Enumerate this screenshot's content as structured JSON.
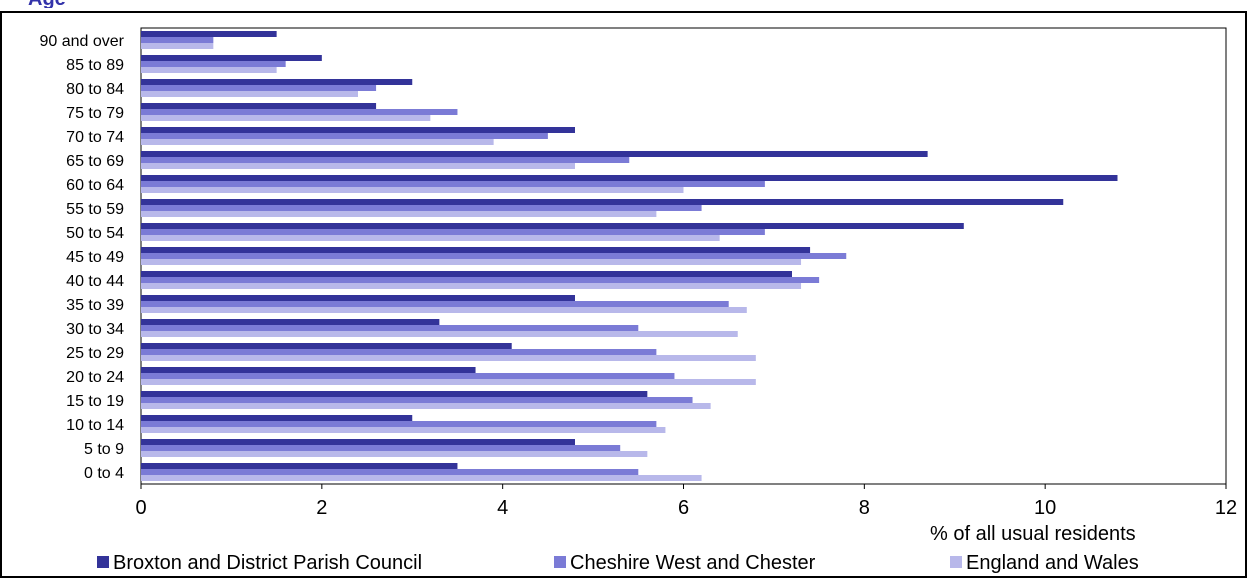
{
  "chart_data": {
    "type": "bar",
    "orientation": "horizontal",
    "title_fragment": "Age",
    "categories": [
      "90 and over",
      "85 to 89",
      "80 to 84",
      "75 to 79",
      "70 to 74",
      "65 to 69",
      "60 to 64",
      "55 to 59",
      "50 to 54",
      "45 to 49",
      "40 to 44",
      "35 to 39",
      "30 to 34",
      "25 to 29",
      "20 to 24",
      "15 to 19",
      "10 to 14",
      "5 to 9",
      "0 to 4"
    ],
    "series": [
      {
        "name": "Broxton and District Parish Council",
        "color": "#333399",
        "values": [
          1.5,
          2.0,
          3.0,
          2.6,
          4.8,
          8.7,
          10.8,
          10.2,
          9.1,
          7.4,
          7.2,
          4.8,
          3.3,
          4.1,
          3.7,
          5.6,
          3.0,
          4.8,
          3.5
        ]
      },
      {
        "name": "Cheshire West and Chester",
        "color": "#7b7bd6",
        "values": [
          0.8,
          1.6,
          2.6,
          3.5,
          4.5,
          5.4,
          6.9,
          6.2,
          6.9,
          7.8,
          7.5,
          6.5,
          5.5,
          5.7,
          5.9,
          6.1,
          5.7,
          5.3,
          5.5
        ]
      },
      {
        "name": "England and Wales",
        "color": "#b8b8ea",
        "values": [
          0.8,
          1.5,
          2.4,
          3.2,
          3.9,
          4.8,
          6.0,
          5.7,
          6.4,
          7.3,
          7.3,
          6.7,
          6.6,
          6.8,
          6.8,
          6.3,
          5.8,
          5.6,
          6.2
        ]
      }
    ],
    "xlabel": "% of all usual residents",
    "xlim": [
      0,
      12
    ],
    "xticks": [
      "0",
      "2",
      "4",
      "6",
      "8",
      "10",
      "12"
    ],
    "legend_position": "bottom",
    "grid": false
  }
}
